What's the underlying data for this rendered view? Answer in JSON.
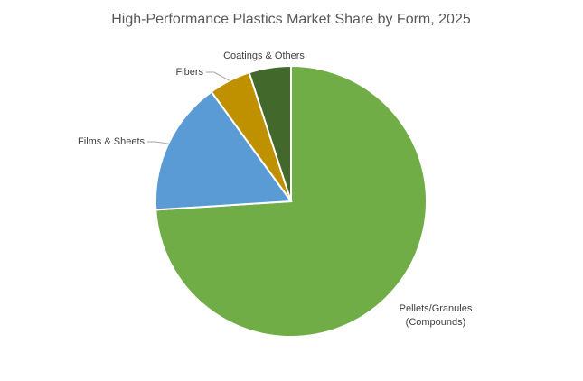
{
  "chart_data": {
    "type": "pie",
    "title": "High-Performance Plastics Market Share by Form, 2025",
    "categories": [
      "Pellets/Granules\n(Compounds)",
      "Films & Sheets",
      "Fibers",
      "Coatings & Others"
    ],
    "values": [
      74,
      16,
      5,
      5
    ],
    "colors": [
      "#70ad47",
      "#5b9bd5",
      "#bf9000",
      "#43682b"
    ]
  }
}
